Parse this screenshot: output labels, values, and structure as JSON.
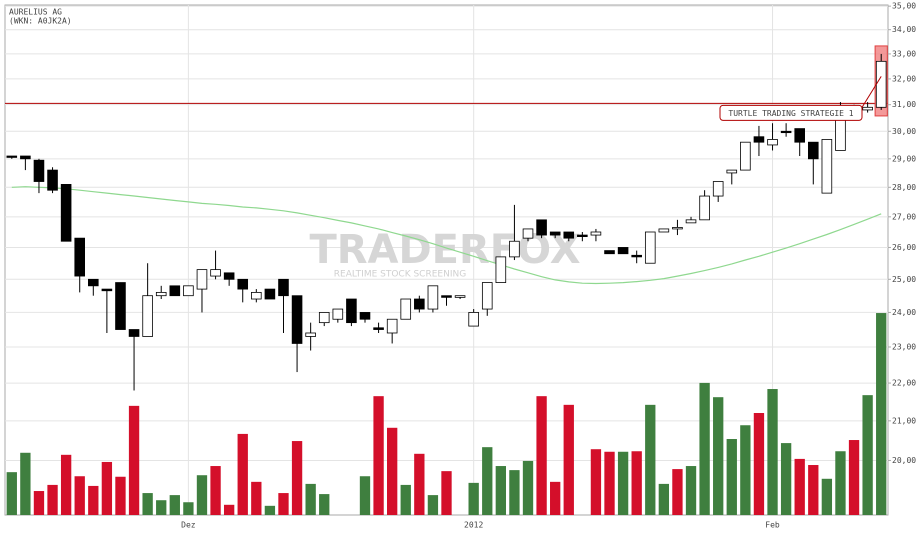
{
  "chart_data": {
    "type": "candlestick",
    "title": "AURELIUS AG",
    "subtitle": "(WKN: A0JK2A)",
    "watermark": {
      "brand": "TRADERFOX",
      "tagline": "REALTIME STOCK SCREENING"
    },
    "categories": [
      null,
      null,
      null,
      null,
      null,
      null,
      null,
      null,
      null,
      null,
      null,
      null,
      null,
      "Dez",
      null,
      null,
      null,
      null,
      null,
      null,
      null,
      null,
      null,
      null,
      null,
      null,
      null,
      null,
      null,
      null,
      null,
      null,
      null,
      null,
      "2012",
      null,
      null,
      null,
      null,
      null,
      null,
      null,
      null,
      null,
      null,
      null,
      null,
      null,
      null,
      null,
      null,
      null,
      null,
      null,
      null,
      null,
      "Feb",
      null,
      null,
      null,
      null,
      null,
      null,
      null,
      null
    ],
    "open": [
      29.1,
      29.1,
      28.95,
      28.6,
      28.1,
      26.3,
      25.0,
      24.7,
      24.9,
      23.5,
      23.3,
      24.5,
      24.8,
      24.5,
      24.7,
      25.1,
      25.2,
      25.0,
      24.4,
      24.7,
      25.0,
      24.5,
      23.3,
      23.7,
      23.8,
      24.4,
      24.0,
      23.55,
      23.4,
      23.8,
      24.4,
      24.1,
      24.5,
      24.45,
      23.6,
      24.1,
      24.9,
      25.7,
      26.3,
      26.9,
      26.5,
      26.5,
      26.4,
      26.4,
      25.9,
      26.0,
      25.75,
      25.5,
      26.5,
      26.6,
      26.8,
      26.9,
      27.7,
      28.5,
      28.6,
      29.8,
      29.5,
      30.0,
      30.1,
      29.6,
      27.8,
      29.3,
      30.9,
      30.8,
      30.9
    ],
    "high": [
      29.1,
      29.1,
      29.0,
      28.7,
      28.1,
      26.3,
      25.0,
      24.7,
      24.9,
      23.5,
      25.5,
      24.8,
      24.8,
      24.8,
      25.3,
      25.9,
      25.2,
      25.0,
      24.7,
      24.7,
      25.0,
      24.5,
      23.7,
      24.0,
      24.1,
      24.4,
      24.0,
      23.7,
      23.8,
      24.4,
      24.5,
      24.8,
      24.5,
      24.5,
      24.1,
      24.9,
      25.7,
      27.4,
      26.6,
      26.9,
      26.5,
      26.5,
      26.5,
      26.6,
      25.9,
      26.0,
      25.9,
      26.5,
      26.6,
      26.9,
      27.0,
      27.9,
      28.2,
      28.6,
      29.6,
      30.2,
      30.3,
      30.3,
      30.1,
      29.6,
      29.7,
      31.1,
      31.0,
      31.1,
      33.0
    ],
    "low": [
      29.0,
      28.6,
      27.8,
      27.8,
      26.2,
      24.6,
      24.5,
      23.4,
      23.5,
      21.8,
      23.3,
      24.4,
      24.5,
      24.5,
      24.0,
      25.0,
      24.8,
      24.3,
      24.3,
      24.4,
      23.4,
      22.3,
      22.9,
      23.6,
      23.7,
      23.6,
      23.7,
      23.4,
      23.1,
      23.8,
      24.0,
      24.0,
      24.2,
      24.4,
      23.6,
      23.9,
      24.9,
      25.6,
      26.2,
      26.3,
      26.3,
      26.2,
      26.2,
      26.2,
      25.8,
      25.8,
      25.5,
      25.5,
      26.5,
      26.4,
      26.8,
      26.9,
      27.5,
      28.1,
      28.6,
      29.1,
      29.3,
      29.8,
      29.1,
      28.1,
      27.8,
      29.3,
      30.7,
      30.7,
      30.8
    ],
    "close": [
      29.05,
      29.0,
      28.2,
      27.9,
      26.2,
      25.1,
      24.8,
      24.65,
      23.5,
      23.3,
      24.5,
      24.6,
      24.5,
      24.8,
      25.3,
      25.3,
      25.0,
      24.7,
      24.6,
      24.4,
      24.5,
      23.1,
      23.4,
      24.0,
      24.1,
      23.7,
      23.8,
      23.5,
      23.8,
      24.4,
      24.1,
      24.8,
      24.45,
      24.5,
      24.0,
      24.9,
      25.7,
      26.2,
      26.6,
      26.4,
      26.4,
      26.3,
      26.35,
      26.5,
      25.8,
      25.8,
      25.7,
      26.5,
      26.6,
      26.65,
      26.9,
      27.7,
      28.2,
      28.6,
      29.6,
      29.6,
      29.7,
      29.95,
      29.6,
      29.0,
      29.7,
      30.9,
      30.8,
      30.9,
      32.7
    ],
    "moving_average": {
      "color": "#8fd88f",
      "values": [
        28.0,
        28.02,
        28.0,
        27.98,
        27.95,
        27.9,
        27.85,
        27.8,
        27.75,
        27.7,
        27.65,
        27.6,
        27.55,
        27.5,
        27.45,
        27.42,
        27.38,
        27.33,
        27.3,
        27.25,
        27.2,
        27.13,
        27.05,
        26.97,
        26.88,
        26.8,
        26.7,
        26.6,
        26.48,
        26.37,
        26.25,
        26.12,
        25.98,
        25.85,
        25.72,
        25.58,
        25.45,
        25.32,
        25.2,
        25.08,
        24.98,
        24.92,
        24.88,
        24.87,
        24.88,
        24.9,
        24.93,
        24.97,
        25.02,
        25.1,
        25.18,
        25.27,
        25.37,
        25.48,
        25.6,
        25.72,
        25.85,
        25.98,
        26.12,
        26.27,
        26.42,
        26.58,
        26.75,
        26.92,
        27.1
      ]
    },
    "volume": [
      8.4,
      12.2,
      4.7,
      5.9,
      11.8,
      7.6,
      5.7,
      10.4,
      7.5,
      21.4,
      4.3,
      2.9,
      3.9,
      2.5,
      7.8,
      9.6,
      2.0,
      15.9,
      6.5,
      1.8,
      4.3,
      14.5,
      6.1,
      4.1,
      null,
      null,
      7.6,
      23.3,
      17.1,
      5.9,
      12.0,
      3.9,
      8.6,
      null,
      6.3,
      13.3,
      9.6,
      8.8,
      10.6,
      23.3,
      6.5,
      21.6,
      null,
      12.9,
      12.4,
      12.4,
      12.5,
      21.6,
      6.1,
      9.0,
      9.6,
      25.9,
      23.1,
      14.9,
      17.6,
      20.0,
      24.7,
      14.1,
      11.0,
      9.8,
      7.1,
      12.5,
      14.7,
      23.5,
      39.6
    ],
    "volume_colors": [
      "#3f7f3f",
      "#3f7f3f",
      "#d40f2a",
      "#d40f2a",
      "#d40f2a",
      "#d40f2a",
      "#d40f2a",
      "#d40f2a",
      "#d40f2a",
      "#d40f2a",
      "#3f7f3f",
      "#3f7f3f",
      "#3f7f3f",
      "#3f7f3f",
      "#3f7f3f",
      "#d40f2a",
      "#d40f2a",
      "#d40f2a",
      "#d40f2a",
      "#3f7f3f",
      "#d40f2a",
      "#d40f2a",
      "#3f7f3f",
      "#3f7f3f",
      null,
      null,
      "#3f7f3f",
      "#d40f2a",
      "#d40f2a",
      "#3f7f3f",
      "#d40f2a",
      "#3f7f3f",
      "#d40f2a",
      null,
      "#3f7f3f",
      "#3f7f3f",
      "#3f7f3f",
      "#3f7f3f",
      "#3f7f3f",
      "#d40f2a",
      "#d40f2a",
      "#d40f2a",
      null,
      "#d40f2a",
      "#d40f2a",
      "#3f7f3f",
      "#d40f2a",
      "#3f7f3f",
      "#3f7f3f",
      "#d40f2a",
      "#3f7f3f",
      "#3f7f3f",
      "#3f7f3f",
      "#3f7f3f",
      "#3f7f3f",
      "#d40f2a",
      "#3f7f3f",
      "#3f7f3f",
      "#d40f2a",
      "#d40f2a",
      "#3f7f3f",
      "#3f7f3f",
      "#d40f2a",
      "#3f7f3f",
      "#3f7f3f"
    ],
    "y2lim": [
      0,
      100
    ],
    "ylim": [
      18.7,
      35.05
    ],
    "ylog": true,
    "yticks": [
      {
        "value": 20,
        "label": "20,00"
      },
      {
        "value": 21,
        "label": "21,00"
      },
      {
        "value": 22,
        "label": "22,00"
      },
      {
        "value": 23,
        "label": "23,00"
      },
      {
        "value": 24,
        "label": "24,00"
      },
      {
        "value": 25,
        "label": "25,00"
      },
      {
        "value": 26,
        "label": "26,00"
      },
      {
        "value": 27,
        "label": "27,00"
      },
      {
        "value": 28,
        "label": "28,00"
      },
      {
        "value": 29,
        "label": "29,00"
      },
      {
        "value": 30,
        "label": "30,00"
      },
      {
        "value": 31,
        "label": "31,00"
      },
      {
        "value": 32,
        "label": "32,00"
      },
      {
        "value": 33,
        "label": "33,00"
      },
      {
        "value": 34,
        "label": "34,00"
      },
      {
        "value": 35,
        "label": "35,00"
      }
    ],
    "grid": true,
    "hline": {
      "value": 31.05,
      "color": "#b00000",
      "label": "TURTLE TRADING STRATEGIE 1"
    }
  }
}
